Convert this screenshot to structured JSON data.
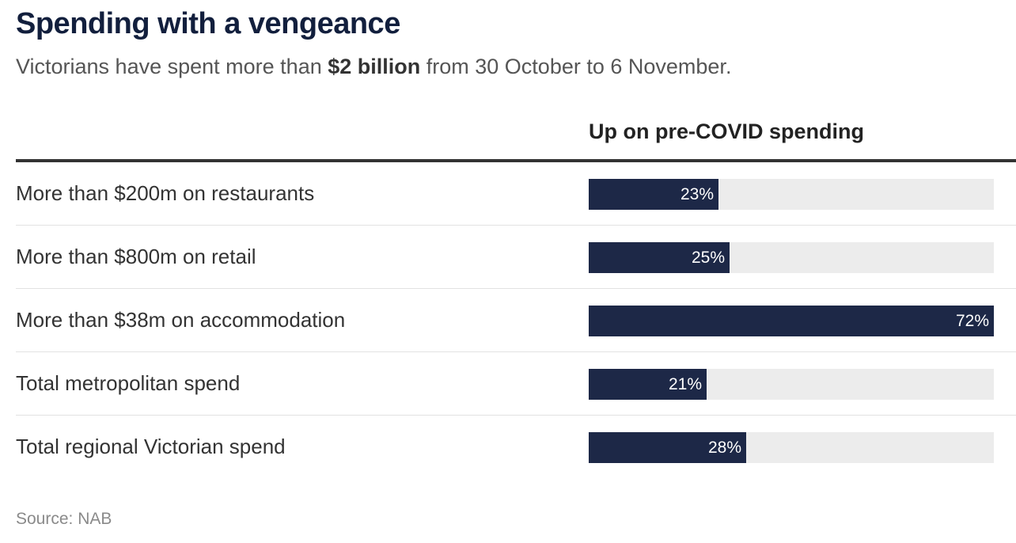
{
  "chart_data": {
    "type": "bar",
    "title": "Spending with a vengeance",
    "subtitle": {
      "before": "Victorians have spent more than ",
      "bold": "$2 billion",
      "after": " from 30 October to 6 November."
    },
    "column_header": "Up on pre-COVID spending",
    "categories": [
      "More than $200m on restaurants",
      "More than $800m on retail",
      "More than $38m on accommodation",
      "Total metropolitan spend",
      "Total regional Victorian spend"
    ],
    "values": [
      23,
      25,
      72,
      21,
      28
    ],
    "value_labels": [
      "23%",
      "25%",
      "72%",
      "21%",
      "28%"
    ],
    "xlim": [
      0,
      72
    ],
    "grid": false,
    "source": "Source: NAB"
  },
  "colors": {
    "bar": "#1d2847",
    "track": "#ececec",
    "title": "#121f3d"
  }
}
